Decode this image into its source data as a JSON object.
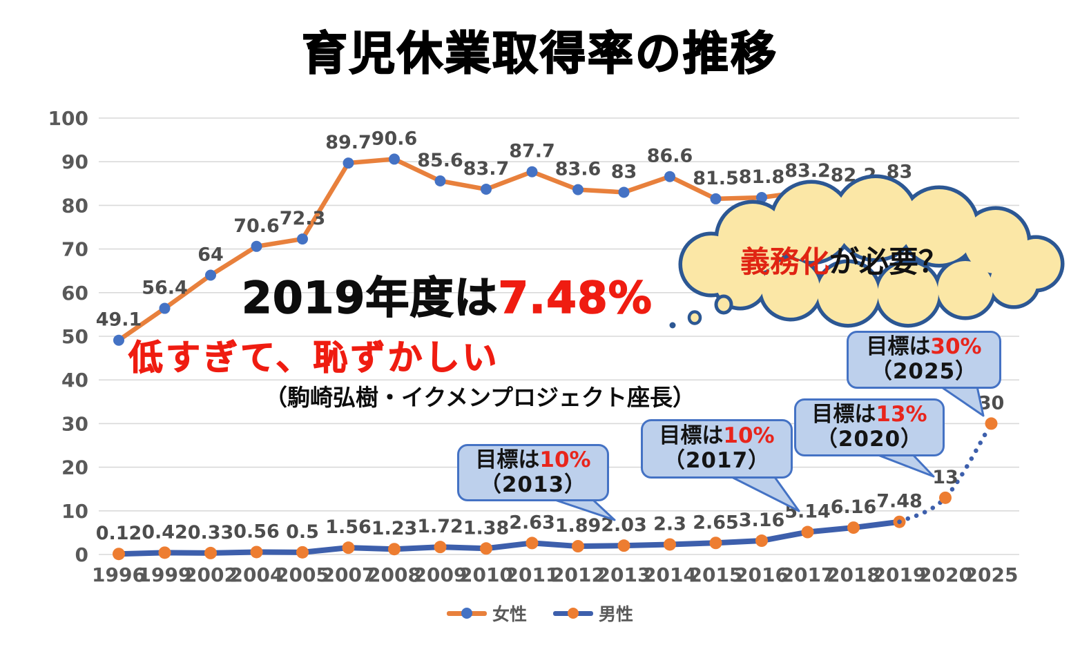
{
  "title": "育児休業取得率の推移",
  "annotations": {
    "headline": {
      "black": "2019年度は",
      "red": "7.48%"
    },
    "subline": "低すぎて、恥ずかしい",
    "attribution": "（駒崎弘樹・イクメンプロジェクト座長）",
    "thought_cloud": {
      "red": "義務化",
      "black": "が必要？"
    },
    "callouts": [
      {
        "prefix": "目標は",
        "value": "10%",
        "year": "（2013）"
      },
      {
        "prefix": "目標は",
        "value": "10%",
        "year": "（2017）"
      },
      {
        "prefix": "目標は",
        "value": "13%",
        "year": "（2020）"
      },
      {
        "prefix": "目標は",
        "value": "30%",
        "year": "（2025）"
      }
    ]
  },
  "colors": {
    "women_line": "#e8803c",
    "women_marker": "#4472c4",
    "men_line": "#3d5fac",
    "men_marker": "#ed7d31",
    "grid": "#d9d9d9",
    "axis_text": "#595959",
    "red_text": "#ef1c11",
    "cloud_fill": "#fbe7a6",
    "cloud_border": "#2c5793",
    "callout_fill": "#bdd0ec",
    "callout_border": "#4472c4"
  },
  "chart_data": {
    "type": "line",
    "title": "育児休業取得率の推移",
    "categories": [
      "1996",
      "1999",
      "2002",
      "2004",
      "2005",
      "2007",
      "2008",
      "2009",
      "2010",
      "2011",
      "2012",
      "2013",
      "2014",
      "2015",
      "2016",
      "2017",
      "2018",
      "2019",
      "2020",
      "2025"
    ],
    "series": [
      {
        "name": "女性",
        "line_color": "#e8803c",
        "marker_color": "#4472c4",
        "values": [
          49.1,
          56.4,
          64,
          70.6,
          72.3,
          89.7,
          90.6,
          85.6,
          83.7,
          87.7,
          83.6,
          83,
          86.6,
          81.5,
          81.8,
          83.2,
          82.2,
          83,
          null,
          null
        ]
      },
      {
        "name": "男性",
        "line_color": "#3d5fac",
        "marker_color": "#ed7d31",
        "values": [
          0.12,
          0.42,
          0.33,
          0.56,
          0.5,
          1.56,
          1.23,
          1.72,
          1.38,
          2.63,
          1.89,
          2.03,
          2.3,
          2.65,
          3.16,
          5.14,
          6.16,
          7.48,
          null,
          null
        ]
      },
      {
        "name": "男性",
        "projection": true,
        "style": "dotted",
        "line_color": "#3d5fac",
        "marker_color": "#ed7d31",
        "values": [
          null,
          null,
          null,
          null,
          null,
          null,
          null,
          null,
          null,
          null,
          null,
          null,
          null,
          null,
          null,
          null,
          null,
          null,
          13,
          30
        ]
      }
    ],
    "ylim": [
      0,
      100
    ],
    "ytick_step": 10,
    "grid": true,
    "xlabel": "",
    "ylabel": "",
    "legend_position": "bottom",
    "legend_entries": [
      "女性",
      "男性"
    ]
  }
}
